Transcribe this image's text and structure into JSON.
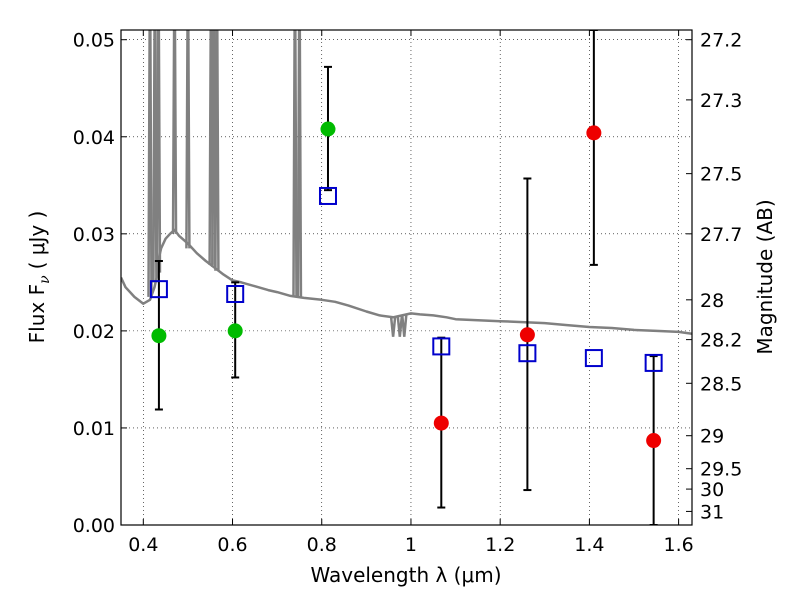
{
  "chart_data": {
    "type": "scatter",
    "xlabel": "Wavelength  λ (μm)",
    "ylabel": "Flux  F",
    "ylabel_sub": "ν",
    "ylabel_unit": "( μJy )",
    "y2label": "Magnitude (AB)",
    "xlim": [
      0.35,
      1.63
    ],
    "ylim": [
      0.0,
      0.051
    ],
    "grid": true,
    "grid_style": "dotted",
    "x_ticks": [
      0.4,
      0.6,
      0.8,
      1.0,
      1.2,
      1.4,
      1.6
    ],
    "x_tick_labels": [
      "0.4",
      "0.6",
      "0.8",
      "1",
      "1.2",
      "1.4",
      "1.6"
    ],
    "y_ticks": [
      0.0,
      0.01,
      0.02,
      0.03,
      0.04,
      0.05
    ],
    "y_tick_labels": [
      "0.00",
      "0.01",
      "0.02",
      "0.03",
      "0.04",
      "0.05"
    ],
    "mag_ticks": [
      {
        "flux": 0.05,
        "label": "27.2"
      },
      {
        "flux": 0.0438,
        "label": "27.3"
      },
      {
        "flux": 0.0362,
        "label": "27.5"
      },
      {
        "flux": 0.03,
        "label": "27.7"
      },
      {
        "flux": 0.0232,
        "label": "28"
      },
      {
        "flux": 0.0191,
        "label": "28.2"
      },
      {
        "flux": 0.0146,
        "label": "28.5"
      },
      {
        "flux": 0.0092,
        "label": "29"
      },
      {
        "flux": 0.0058,
        "label": "29.5"
      },
      {
        "flux": 0.0037,
        "label": "30"
      },
      {
        "flux": 0.0014,
        "label": "31"
      }
    ],
    "colors": {
      "model": "#808080",
      "model_photometry": "#0000cc",
      "detection": "#00bb00",
      "upper_limit": "#ee0000",
      "errorbar": "#000000"
    },
    "model_spectrum": [
      [
        0.35,
        0.0255
      ],
      [
        0.36,
        0.0245
      ],
      [
        0.38,
        0.0235
      ],
      [
        0.4,
        0.0228
      ],
      [
        0.415,
        0.0232
      ],
      [
        0.425,
        0.0245
      ],
      [
        0.43,
        0.0255
      ],
      [
        0.435,
        0.0275
      ],
      [
        0.44,
        0.0285
      ],
      [
        0.45,
        0.0295
      ],
      [
        0.46,
        0.03
      ],
      [
        0.47,
        0.0304
      ],
      [
        0.48,
        0.0298
      ],
      [
        0.5,
        0.029
      ],
      [
        0.52,
        0.028
      ],
      [
        0.54,
        0.0272
      ],
      [
        0.56,
        0.0265
      ],
      [
        0.58,
        0.0258
      ],
      [
        0.6,
        0.0252
      ],
      [
        0.62,
        0.025
      ],
      [
        0.65,
        0.0246
      ],
      [
        0.68,
        0.0242
      ],
      [
        0.7,
        0.024
      ],
      [
        0.73,
        0.0236
      ],
      [
        0.76,
        0.0234
      ],
      [
        0.8,
        0.0232
      ],
      [
        0.83,
        0.023
      ],
      [
        0.86,
        0.0226
      ],
      [
        0.9,
        0.022
      ],
      [
        0.93,
        0.0216
      ],
      [
        0.96,
        0.0214
      ],
      [
        0.98,
        0.0216
      ],
      [
        1.0,
        0.0218
      ],
      [
        1.02,
        0.0217
      ],
      [
        1.05,
        0.0216
      ],
      [
        1.08,
        0.0214
      ],
      [
        1.1,
        0.0212
      ],
      [
        1.15,
        0.0211
      ],
      [
        1.2,
        0.021
      ],
      [
        1.25,
        0.0209
      ],
      [
        1.3,
        0.0208
      ],
      [
        1.35,
        0.0206
      ],
      [
        1.4,
        0.0204
      ],
      [
        1.45,
        0.0203
      ],
      [
        1.5,
        0.0201
      ],
      [
        1.55,
        0.02
      ],
      [
        1.6,
        0.0199
      ],
      [
        1.63,
        0.0197
      ]
    ],
    "emission_lines": [
      {
        "x": 0.415,
        "base": 0.0235,
        "peak": 0.06
      },
      {
        "x": 0.426,
        "base": 0.025,
        "peak": 0.06
      },
      {
        "x": 0.434,
        "base": 0.026,
        "peak": 0.06
      },
      {
        "x": 0.47,
        "base": 0.03,
        "peak": 0.06
      },
      {
        "x": 0.5,
        "base": 0.0285,
        "peak": 0.06
      },
      {
        "x": 0.552,
        "base": 0.0268,
        "peak": 0.06
      },
      {
        "x": 0.558,
        "base": 0.0266,
        "peak": 0.06
      },
      {
        "x": 0.565,
        "base": 0.0262,
        "peak": 0.06
      },
      {
        "x": 0.74,
        "base": 0.0236,
        "peak": 0.06
      },
      {
        "x": 0.75,
        "base": 0.0235,
        "peak": 0.06
      }
    ],
    "absorption_lines": [
      {
        "x": 0.96,
        "base": 0.0214,
        "depth": 0.0194
      },
      {
        "x": 0.975,
        "base": 0.0215,
        "depth": 0.0194
      },
      {
        "x": 0.985,
        "base": 0.0216,
        "depth": 0.0194
      }
    ],
    "model_photometry": [
      {
        "x": 0.435,
        "y": 0.0243
      },
      {
        "x": 0.606,
        "y": 0.0238
      },
      {
        "x": 0.814,
        "y": 0.0339
      },
      {
        "x": 1.068,
        "y": 0.0184
      },
      {
        "x": 1.261,
        "y": 0.0177
      },
      {
        "x": 1.41,
        "y": 0.0172
      },
      {
        "x": 1.544,
        "y": 0.0167
      }
    ],
    "detections": [
      {
        "x": 0.435,
        "y": 0.0195,
        "yerr_low": 0.0119,
        "yerr_high": 0.0272
      },
      {
        "x": 0.606,
        "y": 0.02,
        "yerr_low": 0.0152,
        "yerr_high": 0.025
      },
      {
        "x": 0.814,
        "y": 0.0408,
        "yerr_low": 0.0345,
        "yerr_high": 0.0472
      }
    ],
    "upper_limits": [
      {
        "x": 1.068,
        "y": 0.0105,
        "yerr_low": 0.0018,
        "yerr_high": 0.0193
      },
      {
        "x": 1.261,
        "y": 0.0196,
        "yerr_low": 0.0036,
        "yerr_high": 0.0357
      },
      {
        "x": 1.41,
        "y": 0.0404,
        "yerr_low": 0.0268,
        "yerr_high": 0.051
      },
      {
        "x": 1.544,
        "y": 0.0087,
        "yerr_low": 0.0,
        "yerr_high": 0.0174
      }
    ]
  }
}
